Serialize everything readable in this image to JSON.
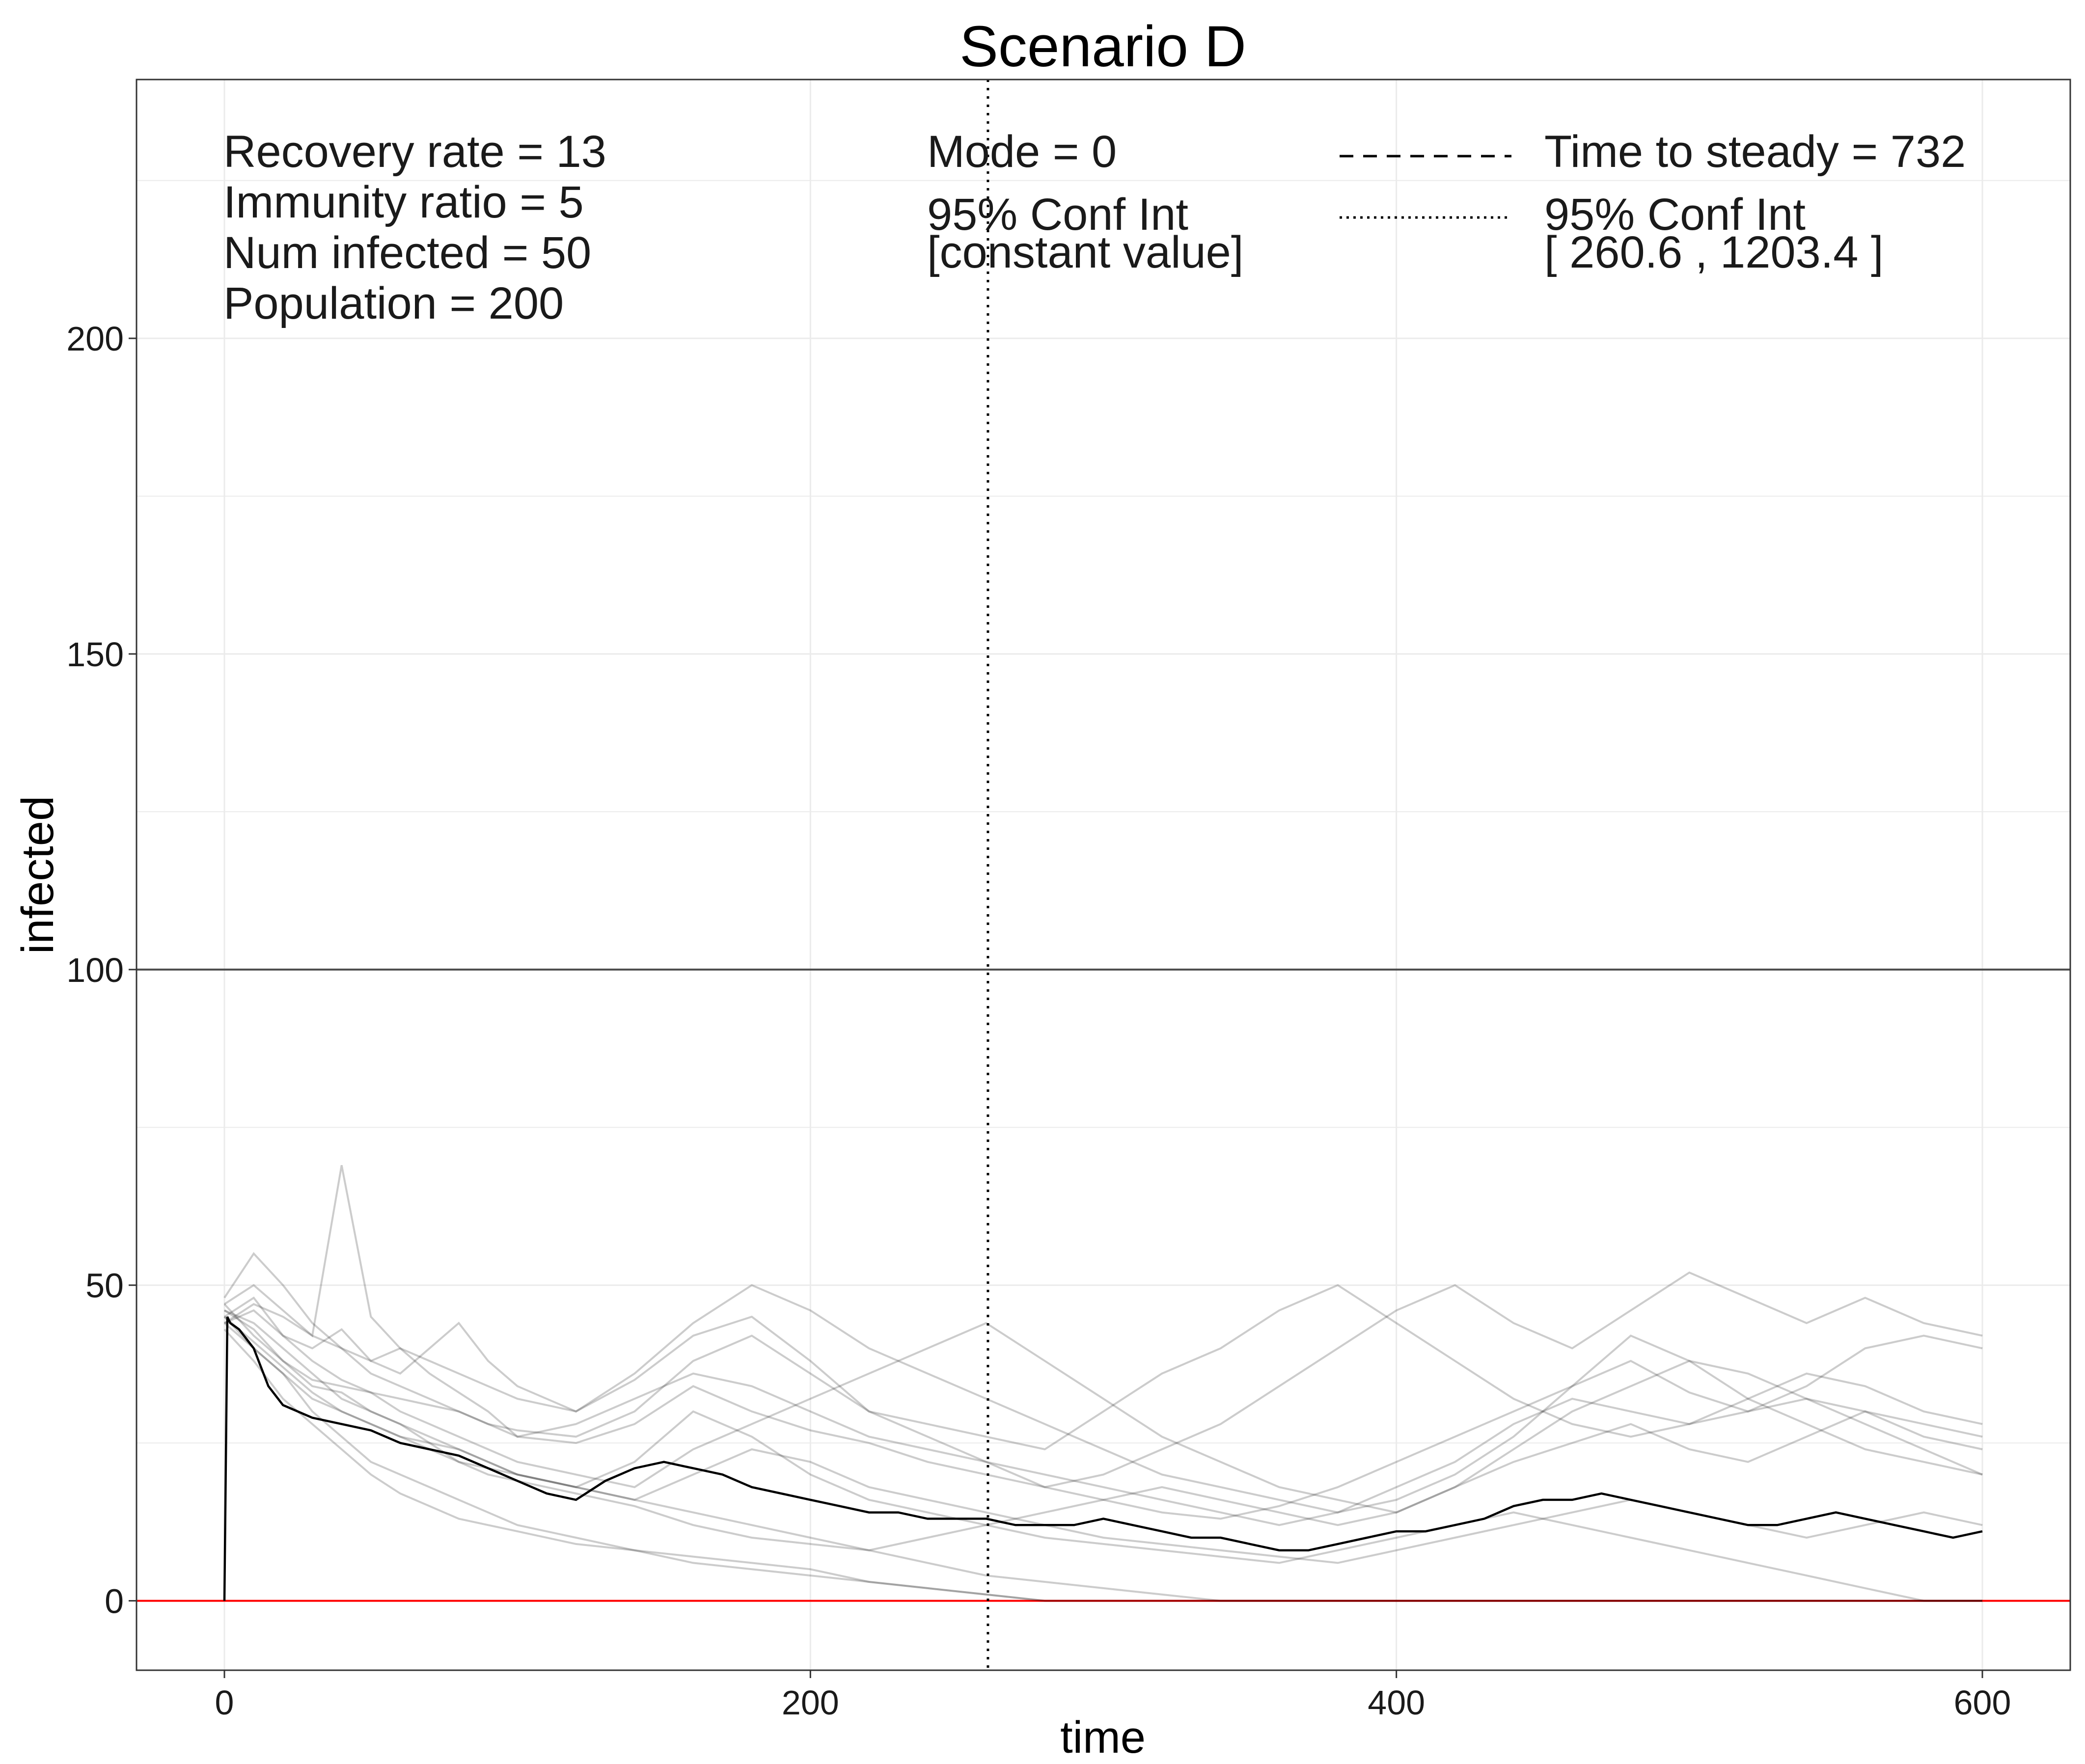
{
  "chart_data": {
    "type": "line",
    "title": "Scenario D",
    "xlabel": "time",
    "ylabel": "infected",
    "xlim": [
      -30,
      630
    ],
    "ylim": [
      -11,
      241
    ],
    "x_ticks": [
      0,
      200,
      400,
      600
    ],
    "y_ticks": [
      0,
      50,
      100,
      150,
      200
    ],
    "x_tick_labels": [
      "0",
      "200",
      "400",
      "600"
    ],
    "y_tick_labels": [
      "0",
      "50",
      "100",
      "150",
      "200"
    ],
    "grid": true,
    "reference_lines": {
      "horizontal_black": 100,
      "horizontal_red": 0,
      "vertical_dotted": 260.6
    },
    "colors": {
      "runs": "#000000",
      "mean": "#000000",
      "zero_line": "#ff0000",
      "threshold_line": "#4d4d4d",
      "grid": "#ebebeb",
      "panel_border": "#333333"
    },
    "annotations": {
      "left": [
        "Recovery rate = 13",
        "Immunity ratio = 5",
        "Num infected = 50",
        "Population = 200"
      ],
      "mid": [
        "Mode = 0",
        "95% Conf Int",
        "[constant value]"
      ],
      "right": [
        "Time to steady = 732",
        "95% Conf Int",
        "[ 260.6 , 1203.4 ]"
      ]
    },
    "mean_series": {
      "x": [
        0,
        1,
        2,
        5,
        10,
        15,
        20,
        30,
        40,
        50,
        60,
        70,
        80,
        90,
        100,
        110,
        120,
        130,
        140,
        150,
        160,
        170,
        180,
        190,
        200,
        210,
        220,
        230,
        240,
        250,
        260,
        270,
        280,
        290,
        300,
        310,
        320,
        330,
        340,
        350,
        360,
        370,
        380,
        390,
        400,
        410,
        420,
        430,
        440,
        450,
        460,
        470,
        480,
        490,
        500,
        510,
        520,
        530,
        540,
        550,
        560,
        570,
        580,
        590,
        600
      ],
      "y": [
        0,
        45,
        44,
        43,
        40,
        34,
        31,
        29,
        28,
        27,
        25,
        24,
        23,
        21,
        19,
        17,
        16,
        19,
        21,
        22,
        21,
        20,
        18,
        17,
        16,
        15,
        14,
        14,
        13,
        13,
        13,
        12,
        12,
        12,
        13,
        12,
        11,
        10,
        10,
        9,
        8,
        8,
        9,
        10,
        11,
        11,
        12,
        13,
        15,
        16,
        16,
        17,
        16,
        15,
        14,
        13,
        12,
        12,
        13,
        14,
        13,
        12,
        11,
        10,
        11
      ]
    },
    "run_series": [
      {
        "x": [
          0,
          10,
          20,
          30,
          40,
          50,
          60,
          70,
          80,
          90,
          100,
          120,
          140,
          160,
          180,
          200,
          220,
          240,
          260,
          280,
          300,
          320,
          340,
          360,
          380,
          400,
          420,
          440,
          460,
          480,
          500,
          520,
          540,
          560,
          580,
          600
        ],
        "y": [
          45,
          48,
          42,
          40,
          43,
          38,
          40,
          36,
          33,
          30,
          26,
          25,
          28,
          34,
          30,
          27,
          25,
          22,
          20,
          18,
          16,
          14,
          13,
          15,
          18,
          22,
          26,
          30,
          34,
          38,
          33,
          30,
          34,
          40,
          42,
          40
        ]
      },
      {
        "x": [
          0,
          10,
          20,
          30,
          40,
          50,
          60,
          70,
          80,
          90,
          100,
          120,
          140,
          160,
          180,
          200,
          220,
          240,
          260,
          280,
          300,
          320,
          340,
          360,
          380,
          400,
          420,
          440,
          460,
          480,
          500,
          520,
          540,
          560,
          580,
          600
        ],
        "y": [
          46,
          43,
          38,
          34,
          33,
          30,
          28,
          25,
          22,
          20,
          19,
          17,
          15,
          12,
          10,
          9,
          8,
          10,
          12,
          14,
          16,
          18,
          16,
          14,
          12,
          14,
          18,
          22,
          25,
          28,
          24,
          22,
          26,
          30,
          28,
          26
        ]
      },
      {
        "x": [
          0,
          10,
          20,
          30,
          40,
          50,
          60,
          70,
          80,
          90,
          100,
          120,
          140,
          160,
          180,
          200,
          220,
          240,
          260,
          280,
          300,
          320,
          340,
          360,
          380,
          400,
          420,
          440,
          460,
          480,
          500,
          520,
          540,
          560,
          580,
          600
        ],
        "y": [
          44,
          40,
          36,
          30,
          26,
          22,
          20,
          18,
          16,
          14,
          12,
          10,
          8,
          6,
          5,
          4,
          3,
          2,
          1,
          0,
          0,
          0,
          0,
          0,
          0,
          0,
          0,
          0,
          0,
          0,
          0,
          0,
          0,
          0,
          0,
          0
        ]
      },
      {
        "x": [
          0,
          10,
          20,
          30,
          40,
          50,
          60,
          70,
          80,
          90,
          100,
          120,
          140,
          160,
          180,
          200,
          220,
          240,
          260,
          280,
          300,
          320,
          340,
          360,
          380,
          400,
          420,
          440,
          460,
          480,
          500,
          520,
          540,
          560,
          580,
          600
        ],
        "y": [
          47,
          50,
          46,
          42,
          69,
          45,
          40,
          38,
          36,
          34,
          32,
          30,
          35,
          42,
          45,
          38,
          30,
          26,
          22,
          18,
          20,
          24,
          28,
          34,
          40,
          46,
          50,
          44,
          40,
          46,
          52,
          48,
          44,
          48,
          44,
          42
        ]
      },
      {
        "x": [
          0,
          10,
          20,
          30,
          40,
          50,
          60,
          70,
          80,
          90,
          100,
          120,
          140,
          160,
          180,
          200,
          220,
          240,
          260,
          280,
          300,
          320,
          340,
          360,
          380,
          400,
          420,
          440,
          460,
          480,
          500,
          520,
          540,
          560,
          580,
          600
        ],
        "y": [
          43,
          38,
          32,
          28,
          24,
          20,
          17,
          15,
          13,
          12,
          11,
          9,
          8,
          7,
          6,
          5,
          3,
          2,
          1,
          0,
          0,
          0,
          0,
          0,
          0,
          0,
          0,
          0,
          0,
          0,
          0,
          0,
          0,
          0,
          0,
          0
        ]
      },
      {
        "x": [
          0,
          10,
          20,
          30,
          40,
          50,
          60,
          70,
          80,
          90,
          100,
          120,
          140,
          160,
          180,
          200,
          220,
          240,
          260,
          280,
          300,
          320,
          340,
          360,
          380,
          400,
          420,
          440,
          460,
          480,
          500,
          520,
          540,
          560,
          580,
          600
        ],
        "y": [
          48,
          55,
          50,
          44,
          40,
          38,
          36,
          40,
          44,
          38,
          34,
          30,
          36,
          44,
          50,
          46,
          40,
          36,
          32,
          28,
          24,
          20,
          18,
          16,
          14,
          18,
          22,
          28,
          32,
          30,
          28,
          32,
          36,
          34,
          30,
          28
        ]
      },
      {
        "x": [
          0,
          10,
          20,
          30,
          40,
          50,
          60,
          70,
          80,
          90,
          100,
          120,
          140,
          160,
          180,
          200,
          220,
          240,
          260,
          280,
          300,
          320,
          340,
          360,
          380,
          400,
          420,
          440,
          460,
          480,
          500,
          520,
          540,
          560,
          580,
          600
        ],
        "y": [
          45,
          41,
          37,
          33,
          30,
          28,
          26,
          24,
          22,
          21,
          20,
          18,
          22,
          30,
          26,
          20,
          16,
          14,
          12,
          10,
          9,
          8,
          7,
          6,
          8,
          10,
          12,
          14,
          12,
          10,
          8,
          6,
          4,
          2,
          0,
          0
        ]
      },
      {
        "x": [
          0,
          10,
          20,
          30,
          40,
          50,
          60,
          70,
          80,
          90,
          100,
          120,
          140,
          160,
          180,
          200,
          220,
          240,
          260,
          280,
          300,
          320,
          340,
          360,
          380,
          400,
          420,
          440,
          460,
          480,
          500,
          520,
          540,
          560,
          580,
          600
        ],
        "y": [
          44,
          46,
          42,
          38,
          35,
          33,
          30,
          28,
          26,
          24,
          22,
          20,
          18,
          24,
          28,
          32,
          36,
          40,
          44,
          38,
          32,
          26,
          22,
          18,
          16,
          14,
          18,
          24,
          30,
          34,
          38,
          36,
          32,
          28,
          24,
          20
        ]
      },
      {
        "x": [
          0,
          10,
          20,
          30,
          40,
          50,
          60,
          70,
          80,
          90,
          100,
          120,
          140,
          160,
          180,
          200,
          220,
          240,
          260,
          280,
          300,
          320,
          340,
          360,
          380,
          400,
          420,
          440,
          460,
          480,
          500,
          520,
          540,
          560,
          580,
          600
        ],
        "y": [
          46,
          44,
          40,
          36,
          32,
          30,
          28,
          26,
          24,
          22,
          20,
          18,
          16,
          14,
          12,
          10,
          8,
          6,
          4,
          3,
          2,
          1,
          0,
          0,
          0,
          0,
          0,
          0,
          0,
          0,
          0,
          0,
          0,
          0,
          0,
          0
        ]
      },
      {
        "x": [
          0,
          10,
          20,
          30,
          40,
          50,
          60,
          70,
          80,
          90,
          100,
          120,
          140,
          160,
          180,
          200,
          220,
          240,
          260,
          280,
          300,
          320,
          340,
          360,
          380,
          400,
          420,
          440,
          460,
          480,
          500,
          520,
          540,
          560,
          580,
          600
        ],
        "y": [
          47,
          42,
          38,
          35,
          34,
          33,
          32,
          31,
          30,
          28,
          26,
          28,
          32,
          36,
          34,
          30,
          26,
          24,
          22,
          20,
          18,
          16,
          14,
          12,
          14,
          16,
          20,
          26,
          34,
          42,
          38,
          32,
          28,
          24,
          22,
          20
        ]
      },
      {
        "x": [
          0,
          10,
          20,
          30,
          40,
          50,
          60,
          70,
          80,
          90,
          100,
          120,
          140,
          160,
          180,
          200,
          220,
          240,
          260,
          280,
          300,
          320,
          340,
          360,
          380,
          400,
          420,
          440,
          460,
          480,
          500,
          520,
          540,
          560,
          580,
          600
        ],
        "y": [
          45,
          40,
          36,
          32,
          30,
          28,
          26,
          25,
          24,
          22,
          20,
          18,
          16,
          20,
          24,
          22,
          18,
          16,
          14,
          12,
          10,
          9,
          8,
          7,
          6,
          8,
          10,
          12,
          14,
          16,
          14,
          12,
          10,
          12,
          14,
          12
        ]
      },
      {
        "x": [
          0,
          10,
          20,
          30,
          40,
          50,
          60,
          70,
          80,
          90,
          100,
          120,
          140,
          160,
          180,
          200,
          220,
          240,
          260,
          280,
          300,
          320,
          340,
          360,
          380,
          400,
          420,
          440,
          460,
          480,
          500,
          520,
          540,
          560,
          580,
          600
        ],
        "y": [
          44,
          47,
          45,
          42,
          40,
          36,
          34,
          32,
          30,
          28,
          27,
          26,
          30,
          38,
          42,
          36,
          30,
          28,
          26,
          24,
          30,
          36,
          40,
          46,
          50,
          44,
          38,
          32,
          28,
          26,
          28,
          30,
          32,
          30,
          26,
          24
        ]
      }
    ]
  }
}
